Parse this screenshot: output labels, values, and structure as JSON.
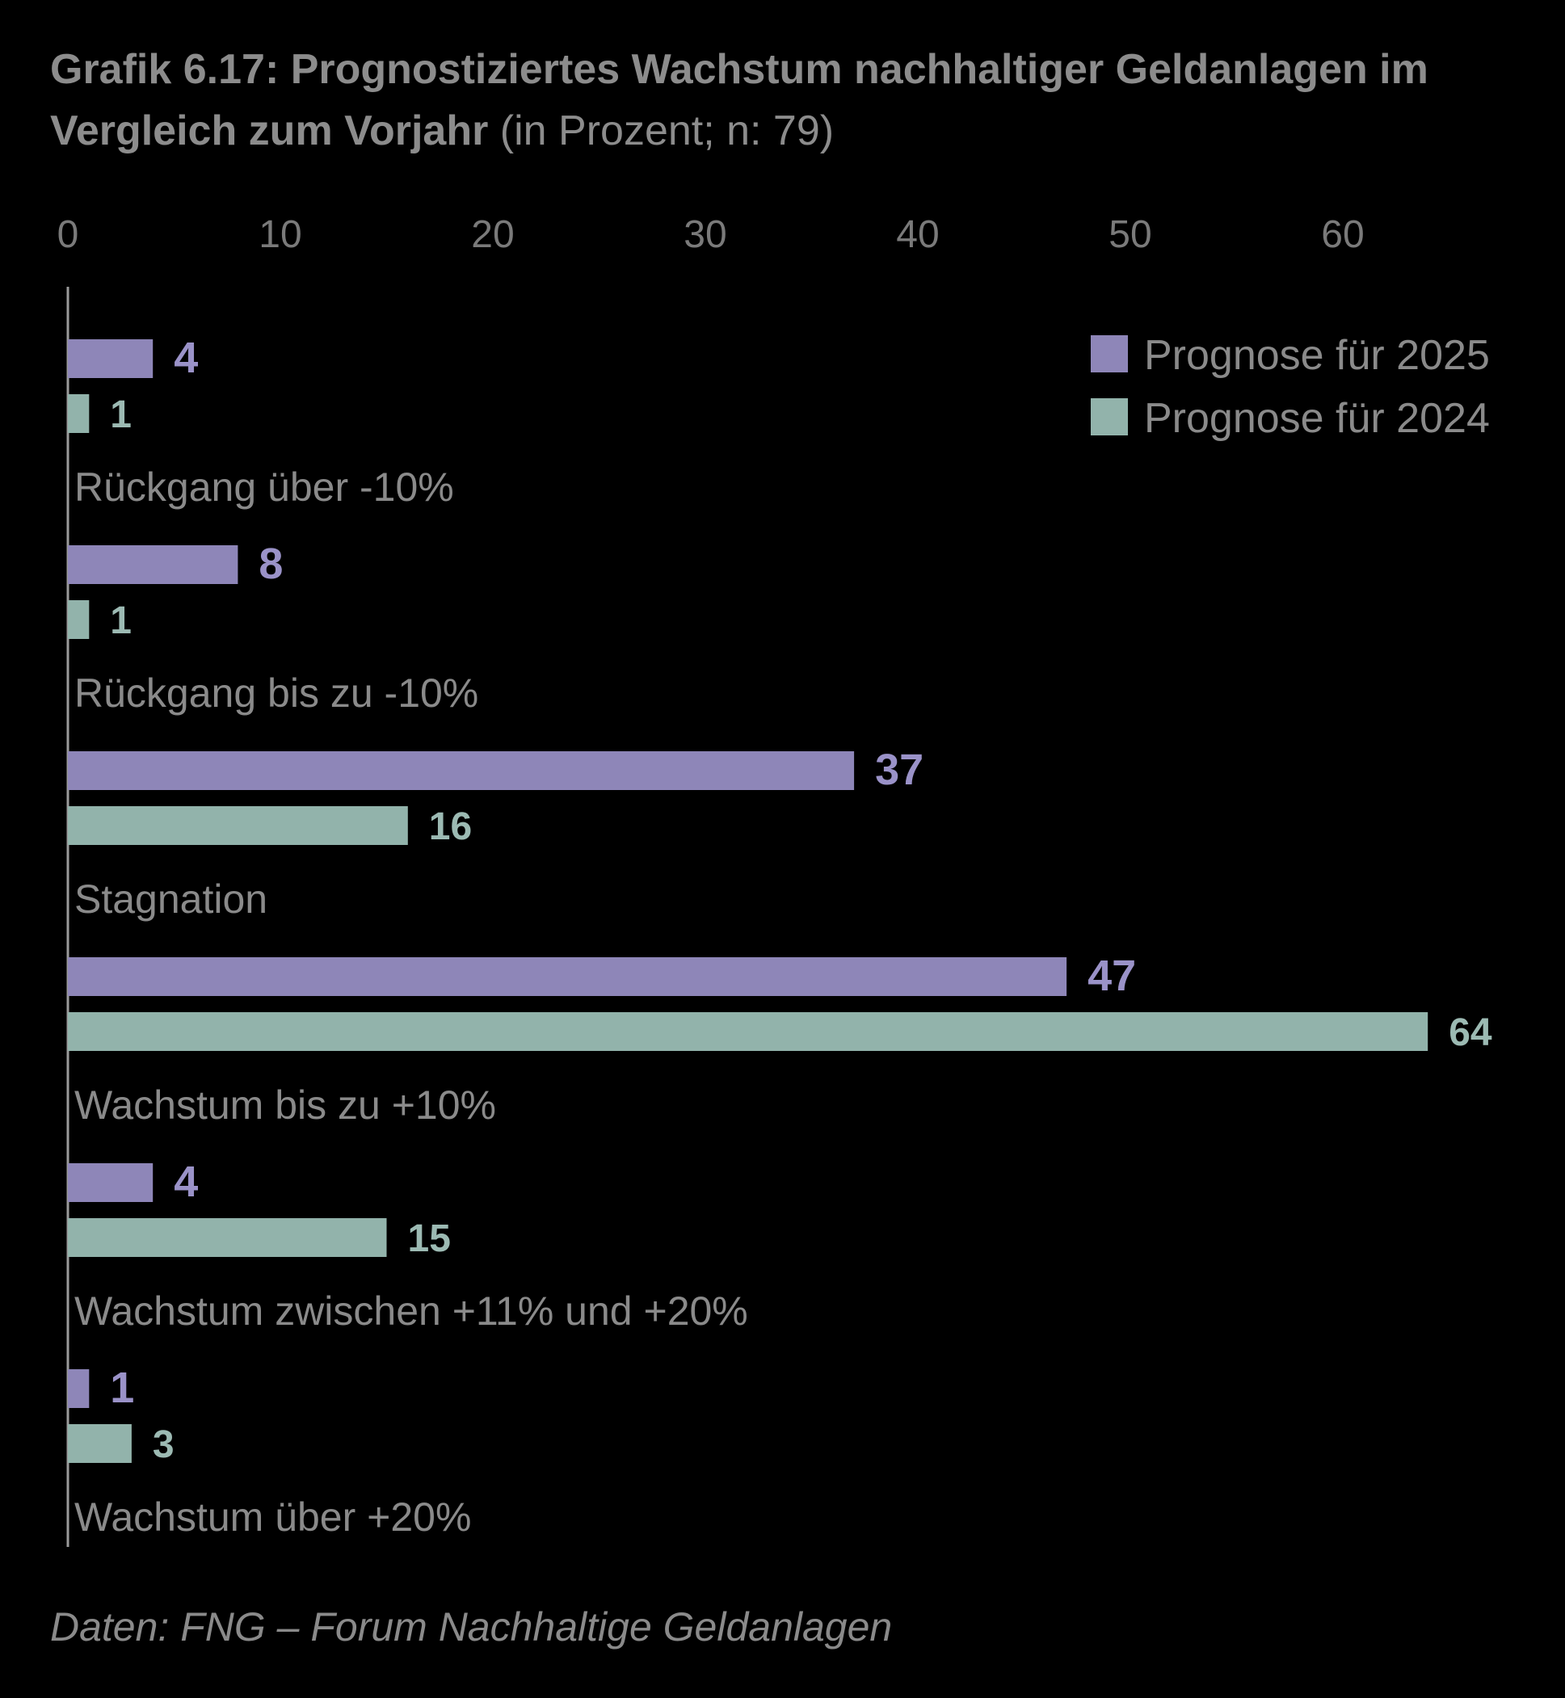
{
  "title": {
    "bold": "Grafik 6.17: Prognostiziertes Wachstum nachhaltiger Geldanlagen im Vergleich zum Vorjahr",
    "normal": "(in Prozent; n: 79)"
  },
  "source": "Daten: FNG – Forum Nachhaltige Geldanlagen",
  "colors": {
    "series_2025": "#8e86b8",
    "series_2024": "#92b3ab",
    "label_2025": "#9a92c8",
    "label_2024": "#9cbab3",
    "axis_text": "#7a7a7a",
    "category_text": "#8a8a8a",
    "axis_line": "#9a9a9a"
  },
  "chart_data": {
    "type": "bar",
    "orientation": "horizontal",
    "categories": [
      "Rückgang über -10%",
      "Rückgang  bis zu -10%",
      "Stagnation",
      "Wachstum bis zu +10%",
      "Wachstum zwischen +11% und +20%",
      "Wachstum über +20%"
    ],
    "series": [
      {
        "name": "Prognose für 2025",
        "values": [
          4,
          8,
          37,
          47,
          4,
          1
        ]
      },
      {
        "name": "Prognose für 2024",
        "values": [
          1,
          1,
          16,
          64,
          15,
          3
        ]
      }
    ],
    "xlim": [
      0,
      65
    ],
    "xticks": [
      0,
      10,
      20,
      30,
      40,
      50,
      60
    ],
    "xaxis_position": "top",
    "grid": false,
    "legend_position": "top-right"
  }
}
